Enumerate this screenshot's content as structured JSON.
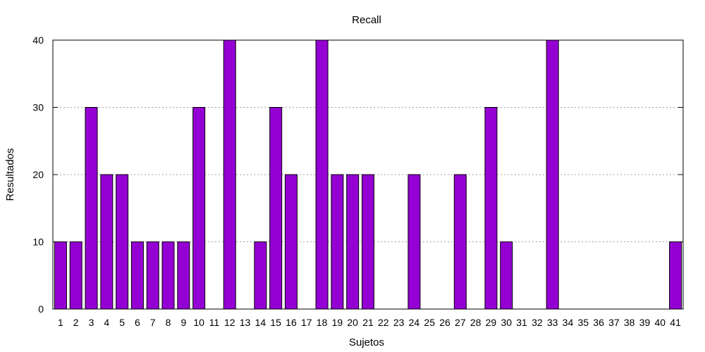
{
  "chart_data": {
    "type": "bar",
    "title": "Recall",
    "xlabel": "Sujetos",
    "ylabel": "Resultados",
    "ylim": [
      0,
      40
    ],
    "yticks": [
      0,
      10,
      20,
      30,
      40
    ],
    "grid": "horizontal dotted",
    "legend": "none",
    "categories": [
      "1",
      "2",
      "3",
      "4",
      "5",
      "6",
      "7",
      "8",
      "9",
      "10",
      "11",
      "12",
      "13",
      "14",
      "15",
      "16",
      "17",
      "18",
      "19",
      "20",
      "21",
      "22",
      "23",
      "24",
      "25",
      "26",
      "27",
      "28",
      "29",
      "30",
      "31",
      "32",
      "33",
      "34",
      "35",
      "36",
      "37",
      "38",
      "39",
      "40",
      "41"
    ],
    "values": [
      10,
      10,
      30,
      20,
      20,
      10,
      10,
      10,
      10,
      30,
      0,
      40,
      0,
      10,
      30,
      20,
      0,
      40,
      20,
      20,
      20,
      0,
      0,
      20,
      0,
      0,
      20,
      0,
      30,
      10,
      0,
      0,
      40,
      0,
      0,
      0,
      0,
      0,
      0,
      0,
      10
    ],
    "bar_color": "#9400D3"
  }
}
